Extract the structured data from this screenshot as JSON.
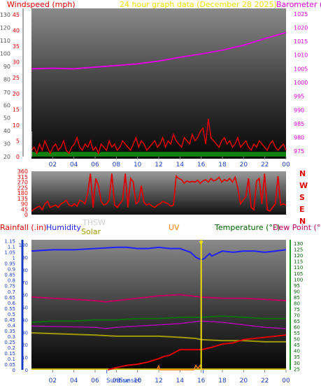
{
  "colors": {
    "wind": "#e00000",
    "gust": "#e00000",
    "barometer": "#e000e0",
    "title": "#f0e000",
    "winddir": "#e00000",
    "rain": "#e00000",
    "humidity": "#2020ff",
    "thsw": "#d0d0d0",
    "solar": "#a09a00",
    "uv": "#ff8000",
    "temperature": "#006000",
    "dewpoint": "#c00060",
    "baseline": "#c8b800",
    "axis_grey": "#555555"
  },
  "header": {
    "windspeed_label": "Windspeed (mph)",
    "title": "24 hour graph data   (December 28 2025)",
    "barometer_label": "Barometer (mb)"
  },
  "compass": [
    "N",
    "W",
    "S",
    "E",
    "N"
  ],
  "legend3": {
    "rainfall": "Rainfall (.in)",
    "humidity": "Humidity",
    "thsw": "THSW",
    "solar": "Solar",
    "uv": "UV",
    "temperature": "Temperature (°F)",
    "dewpoint": "Dew Point (°F)"
  },
  "sun_labels": [
    "Sunrise",
    "Sunset"
  ],
  "chart_data": [
    {
      "type": "line",
      "title": "24 hour graph data   (December 28 2025)",
      "x_ticks": [
        "02",
        "04",
        "06",
        "08",
        "10",
        "12",
        "14",
        "16",
        "18",
        "20",
        "22",
        "00"
      ],
      "left_axes": [
        {
          "name": "Windspeed (mph)",
          "ticks": [
            0,
            5,
            10,
            15,
            20,
            25,
            30,
            35,
            40,
            45
          ],
          "range": [
            0,
            47
          ]
        },
        {
          "name": "",
          "ticks": [
            20,
            30,
            40,
            50,
            60,
            70,
            80,
            90,
            100,
            110,
            120,
            130
          ],
          "range": [
            20,
            135
          ]
        }
      ],
      "right_axis": {
        "name": "Barometer (mb)",
        "ticks": [
          975,
          980,
          985,
          990,
          995,
          1000,
          1005,
          1010,
          1015,
          1020,
          1025
        ],
        "range": [
          973,
          1027
        ]
      },
      "series": [
        {
          "name": "Barometer (mb)",
          "x": [
            0,
            2,
            4,
            6,
            8,
            10,
            12,
            14,
            16,
            18,
            20,
            22,
            24
          ],
          "y": [
            1005.0,
            1005.2,
            1005.0,
            1005.6,
            1006.2,
            1006.8,
            1007.8,
            1009.2,
            1010.4,
            1011.8,
            1013.6,
            1016.0,
            1018.2
          ]
        },
        {
          "name": "Windspeed (mph)",
          "y": [
            2,
            3,
            1,
            4,
            2,
            5,
            3,
            1,
            3,
            4,
            2,
            3,
            5,
            2,
            1,
            3,
            4,
            6,
            3,
            2,
            4,
            3,
            5,
            2,
            3,
            1,
            4,
            3,
            2,
            5,
            3,
            4,
            2,
            3,
            5,
            4,
            3,
            2,
            4,
            6,
            3,
            5,
            4,
            2,
            3,
            4,
            5,
            3,
            4,
            6,
            3,
            5,
            4,
            7,
            5,
            4,
            3,
            6,
            5,
            4,
            7,
            5,
            6,
            8,
            9,
            4,
            12,
            6,
            5,
            4,
            3,
            5,
            6,
            4,
            5,
            3,
            4,
            6,
            3,
            4,
            5,
            3,
            2,
            4,
            3,
            5,
            4,
            3,
            2,
            4,
            5,
            3,
            2,
            3,
            4,
            2
          ]
        }
      ]
    },
    {
      "type": "line",
      "x_ticks": [
        "02",
        "04",
        "06",
        "08",
        "10",
        "12",
        "14",
        "16",
        "18",
        "20",
        "22",
        "00"
      ],
      "y_ticks": [
        0,
        45,
        90,
        135,
        180,
        225,
        270,
        315,
        360
      ],
      "y_range": [
        0,
        360
      ],
      "series": [
        {
          "name": "",
          "y": [
            30,
            45,
            60,
            70,
            40,
            90,
            110,
            60,
            70,
            80,
            60,
            90,
            100,
            120,
            80,
            70,
            90,
            70,
            120,
            110,
            90,
            180,
            340,
            60,
            300,
            240,
            110,
            80,
            90,
            120,
            340,
            80,
            60,
            90,
            120,
            340,
            60,
            300,
            270,
            90,
            110,
            240,
            100,
            80,
            90,
            70,
            60,
            80,
            90,
            110,
            100,
            90,
            70,
            80,
            320,
            300,
            290,
            260,
            280,
            270,
            275,
            270,
            285,
            260,
            280,
            290,
            270,
            300,
            280,
            290,
            310,
            270,
            290,
            280,
            300,
            270,
            310,
            220,
            90,
            120,
            150,
            300,
            60,
            40,
            280,
            300,
            90,
            340,
            40,
            30,
            60,
            90,
            320,
            80,
            90,
            80
          ]
        }
      ]
    },
    {
      "type": "line",
      "x_ticks": [
        "02",
        "04",
        "06",
        "08",
        "10",
        "12",
        "14",
        "16",
        "18",
        "20",
        "22",
        "00"
      ],
      "left_axes": [
        {
          "name": "Rainfall (.in)",
          "ticks": [
            0,
            0.05,
            0.1,
            0.15,
            0.2,
            0.25,
            0.3,
            0.35,
            0.4,
            0.45,
            0.5,
            0.55,
            0.6,
            0.65,
            0.7,
            0.75,
            0.8,
            0.85,
            0.9,
            0.95,
            1,
            1.05,
            1.1,
            1.15
          ],
          "range": [
            0,
            1.16
          ]
        },
        {
          "name": "Humidity",
          "ticks": [
            0,
            10,
            20,
            30,
            40,
            50,
            60,
            70,
            80,
            90,
            100
          ],
          "range": [
            0,
            104
          ]
        }
      ],
      "right_axis": {
        "name": "Temperature (°F)",
        "ticks": [
          25,
          30,
          35,
          40,
          45,
          50,
          55,
          60,
          65,
          70,
          75,
          80,
          85,
          90,
          95,
          100,
          105,
          110,
          115,
          120,
          125,
          130
        ],
        "range": [
          24,
          133
        ]
      },
      "series": [
        {
          "name": "Humidity",
          "x": [
            0,
            2,
            4,
            6,
            8,
            9,
            10,
            11,
            12,
            13,
            14,
            15,
            15.5,
            16,
            16.3,
            16.8,
            17,
            18,
            19,
            20,
            21,
            22,
            23,
            24
          ],
          "y": [
            95,
            96,
            96,
            97,
            98,
            98,
            97,
            97,
            98,
            97,
            97,
            94,
            90,
            88,
            89,
            93,
            91,
            95,
            94,
            95,
            95,
            94,
            95,
            96
          ]
        },
        {
          "name": "Temperature (°F)",
          "x": [
            0,
            2,
            4,
            6,
            8,
            10,
            12,
            14,
            16,
            18,
            20,
            22,
            24
          ],
          "y": [
            38,
            39,
            39,
            40,
            40,
            41,
            41,
            42,
            42,
            43,
            42,
            41,
            41
          ]
        },
        {
          "name": "Dew Point (°F)",
          "x": [
            0,
            2,
            4,
            6,
            7,
            8,
            10,
            12,
            14,
            16,
            18,
            20,
            22,
            24
          ],
          "y": [
            85,
            84,
            83,
            82,
            81,
            82,
            84,
            86,
            87,
            85,
            84,
            84,
            83,
            82
          ]
        },
        {
          "name": "Solar",
          "x": [
            0,
            6,
            8,
            10,
            12,
            14,
            15.5,
            16,
            18,
            20,
            22,
            24
          ],
          "y": [
            0.33,
            0.31,
            0.3,
            0.3,
            0.3,
            0.29,
            0.28,
            0.27,
            0.26,
            0.26,
            0.25,
            0.25
          ]
        },
        {
          "name": "THSW",
          "x": [
            0,
            6,
            7,
            8,
            10,
            12,
            14,
            16,
            18,
            20,
            22,
            24
          ],
          "y": [
            35,
            34,
            33,
            34,
            35,
            36,
            37,
            39,
            38,
            36,
            34,
            33
          ]
        },
        {
          "name": "Rainfall (.in)",
          "x": [
            7.2,
            8,
            9,
            10,
            11,
            12,
            12.5,
            13,
            14,
            15,
            16,
            16.5,
            17,
            18,
            19,
            20,
            21,
            22,
            23,
            24
          ],
          "y": [
            0,
            0.02,
            0.04,
            0.05,
            0.07,
            0.1,
            0.12,
            0.13,
            0.18,
            0.18,
            0.18,
            0.19,
            0.2,
            0.23,
            0.24,
            0.27,
            0.28,
            0.29,
            0.3,
            0.31
          ]
        },
        {
          "name": "UV",
          "x": [
            11.8,
            12,
            12.1,
            12.3,
            15.3,
            15.5,
            15.7,
            15.9,
            16.1
          ],
          "y": [
            0.0,
            0.035,
            0.0,
            0.0,
            0.0,
            0.04,
            0.01,
            0.04,
            0.0
          ]
        }
      ]
    }
  ]
}
